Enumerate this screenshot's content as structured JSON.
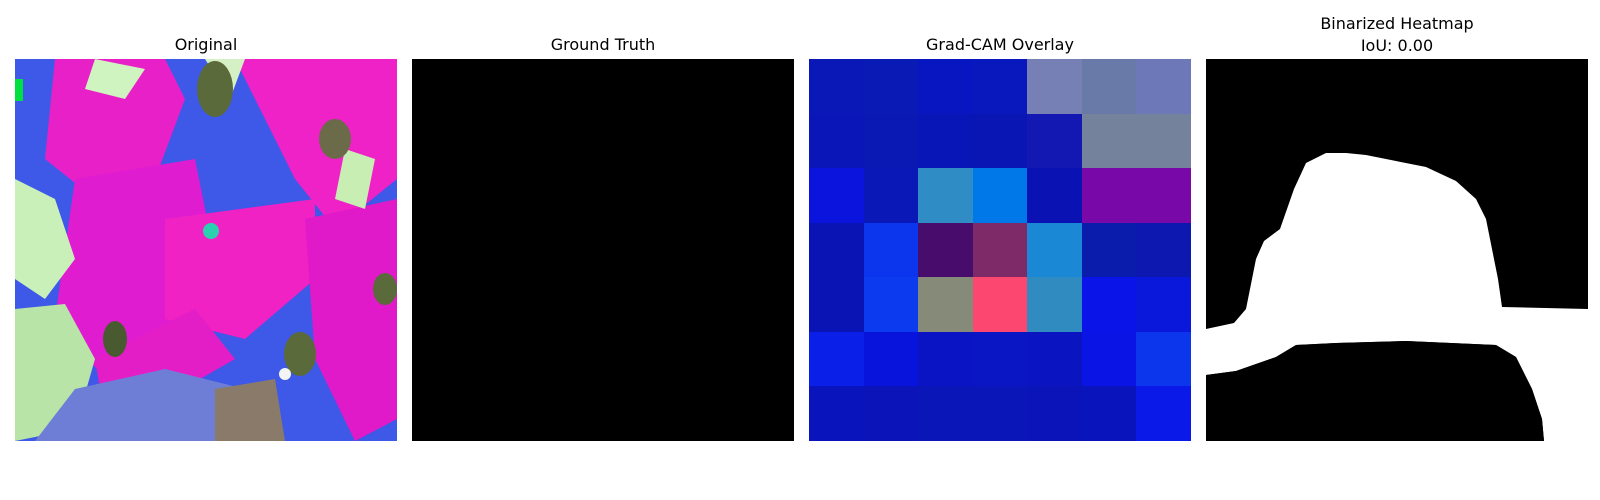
{
  "titles": {
    "original": "Original",
    "ground_truth": "Ground Truth",
    "gradcam": "Grad-CAM Overlay",
    "binarized_line1": "Binarized Heatmap",
    "binarized_line2": "IoU: 0.00"
  },
  "ground_truth_color": "#000000",
  "gradcam_cells": [
    [
      "#0a18b8",
      "#0a1ab4",
      "#0816c2",
      "#0818bc",
      "#7680b4",
      "#6a7aa8",
      "#6c78b8"
    ],
    [
      "#0a16b8",
      "#0a18b4",
      "#0816b8",
      "#0a16b4",
      "#1418b2",
      "#74829c",
      "#74829c"
    ],
    [
      "#0a14dc",
      "#0a18b8",
      "#308cc4",
      "#0078e8",
      "#0a12b4",
      "#7808a8",
      "#7808a8"
    ],
    [
      "#0a14b4",
      "#0c36ee",
      "#480c6c",
      "#7e2a68",
      "#1a88d4",
      "#0a1cac",
      "#0c18b0"
    ],
    [
      "#0a14b4",
      "#0c3aee",
      "#868a78",
      "#fc4870",
      "#308cc0",
      "#0a14e8",
      "#0a18dc"
    ],
    [
      "#0a20e8",
      "#0814dc",
      "#0a14c4",
      "#0a16c4",
      "#0a14c0",
      "#0a14e4",
      "#0c36ec"
    ],
    [
      "#0a14bc",
      "#0a14b8",
      "#0a16b8",
      "#0a16b8",
      "#0a14b8",
      "#0a14bc",
      "#0a18e8"
    ]
  ]
}
